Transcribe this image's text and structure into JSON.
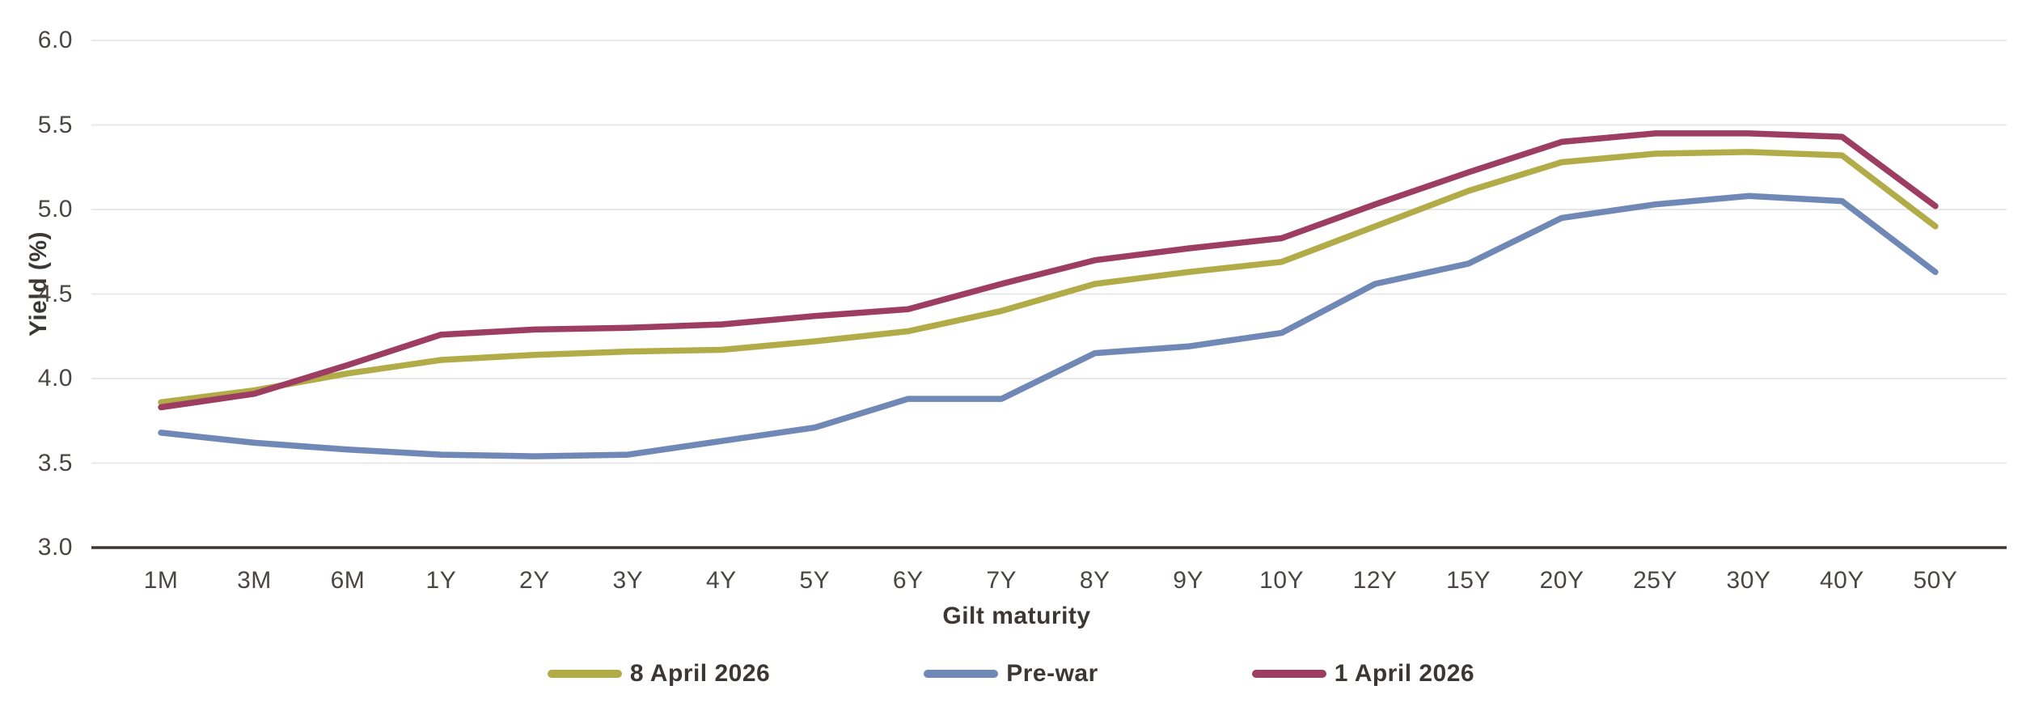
{
  "chart_data": {
    "type": "line",
    "title": "",
    "xlabel": "Gilt maturity",
    "ylabel": "Yield (%)",
    "categories": [
      "1M",
      "3M",
      "6M",
      "1Y",
      "2Y",
      "3Y",
      "4Y",
      "5Y",
      "6Y",
      "7Y",
      "8Y",
      "9Y",
      "10Y",
      "12Y",
      "15Y",
      "20Y",
      "25Y",
      "30Y",
      "40Y",
      "50Y"
    ],
    "series": [
      {
        "name": "8 April 2026",
        "color": "#b1ac48",
        "values": [
          3.86,
          3.93,
          4.03,
          4.11,
          4.14,
          4.16,
          4.17,
          4.22,
          4.28,
          4.4,
          4.56,
          4.63,
          4.69,
          4.9,
          5.11,
          5.28,
          5.33,
          5.34,
          5.32,
          4.9
        ]
      },
      {
        "name": "Pre-war",
        "color": "#6f88b5",
        "values": [
          3.68,
          3.62,
          3.58,
          3.55,
          3.54,
          3.55,
          3.63,
          3.71,
          3.88,
          3.88,
          4.15,
          4.19,
          4.27,
          4.56,
          4.68,
          4.95,
          5.03,
          5.08,
          5.05,
          4.63
        ]
      },
      {
        "name": "1 April 2026",
        "color": "#9c3d61",
        "values": [
          3.83,
          3.91,
          4.08,
          4.26,
          4.29,
          4.3,
          4.32,
          4.37,
          4.41,
          4.56,
          4.7,
          4.77,
          4.83,
          5.03,
          5.22,
          5.4,
          5.45,
          5.45,
          5.43,
          5.02
        ]
      }
    ],
    "ylim": [
      3.0,
      6.0
    ],
    "ytick_step": 0.5,
    "ytick_labels": [
      "3.0",
      "3.5",
      "4.0",
      "4.5",
      "5.0",
      "5.5",
      "6.0"
    ],
    "grid": "horizontal",
    "legend_position": "bottom",
    "draw_order_note": "1 April 2026 drawn on top"
  },
  "style_colors": {
    "background": "#ffffff",
    "gridline": "#e8e8e8",
    "axis_line": "#3d3734",
    "tick_text": "#4b4643",
    "title_text": "#3d3734"
  }
}
